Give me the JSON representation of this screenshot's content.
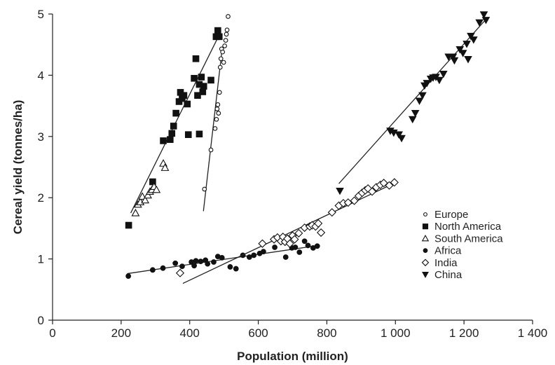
{
  "chart_data": {
    "type": "scatter",
    "xlabel": "Population (million)",
    "ylabel": "Cereal yield (tonnes/ha)",
    "xlim": [
      0,
      1400
    ],
    "ylim": [
      0,
      5
    ],
    "xticks": [
      0,
      200,
      400,
      600,
      800,
      1000,
      1200,
      1400
    ],
    "xtick_labels": [
      "0",
      "200",
      "400",
      "600",
      "800",
      "1 000",
      "1 200",
      "1 400"
    ],
    "yticks": [
      0,
      1,
      2,
      3,
      4,
      5
    ],
    "ytick_labels": [
      "0",
      "1",
      "2",
      "3",
      "4",
      "5"
    ],
    "grid": false,
    "legend_position": "right",
    "series": [
      {
        "name": "Europe",
        "marker": "open-circle",
        "points": [
          [
            443,
            2.14
          ],
          [
            462,
            2.78
          ],
          [
            474,
            3.13
          ],
          [
            478,
            3.28
          ],
          [
            480,
            3.45
          ],
          [
            482,
            3.52
          ],
          [
            484,
            3.38
          ],
          [
            487,
            3.72
          ],
          [
            489,
            4.13
          ],
          [
            491,
            4.27
          ],
          [
            493,
            4.43
          ],
          [
            496,
            4.38
          ],
          [
            499,
            4.21
          ],
          [
            502,
            4.48
          ],
          [
            505,
            4.57
          ],
          [
            507,
            4.67
          ],
          [
            509,
            4.74
          ],
          [
            512,
            4.96
          ]
        ],
        "trendline": [
          [
            440,
            1.78
          ],
          [
            495,
            4.45
          ]
        ]
      },
      {
        "name": "North America",
        "marker": "filled-square",
        "points": [
          [
            222,
            1.55
          ],
          [
            292,
            2.26
          ],
          [
            323,
            2.93
          ],
          [
            343,
            2.95
          ],
          [
            348,
            3.05
          ],
          [
            353,
            3.17
          ],
          [
            360,
            3.38
          ],
          [
            369,
            3.57
          ],
          [
            373,
            3.72
          ],
          [
            378,
            3.62
          ],
          [
            383,
            3.67
          ],
          [
            393,
            3.53
          ],
          [
            396,
            3.03
          ],
          [
            413,
            3.95
          ],
          [
            418,
            4.27
          ],
          [
            423,
            3.67
          ],
          [
            428,
            3.85
          ],
          [
            428,
            3.04
          ],
          [
            434,
            3.97
          ],
          [
            438,
            3.73
          ],
          [
            441,
            3.82
          ],
          [
            462,
            3.92
          ],
          [
            477,
            4.63
          ],
          [
            482,
            4.73
          ],
          [
            486,
            4.63
          ]
        ],
        "trendline": [
          [
            228,
            1.75
          ],
          [
            488,
            4.68
          ]
        ]
      },
      {
        "name": "South America",
        "marker": "open-triangle",
        "points": [
          [
            242,
            1.75
          ],
          [
            249,
            1.89
          ],
          [
            256,
            1.93
          ],
          [
            262,
            2.02
          ],
          [
            270,
            1.96
          ],
          [
            278,
            2.04
          ],
          [
            284,
            2.1
          ],
          [
            290,
            2.13
          ],
          [
            296,
            2.18
          ],
          [
            303,
            2.13
          ],
          [
            323,
            2.56
          ],
          [
            328,
            2.49
          ]
        ],
        "trendline": null
      },
      {
        "name": "Africa",
        "marker": "filled-circle",
        "points": [
          [
            221,
            0.72
          ],
          [
            292,
            0.82
          ],
          [
            322,
            0.85
          ],
          [
            358,
            0.93
          ],
          [
            378,
            0.88
          ],
          [
            405,
            0.95
          ],
          [
            413,
            0.89
          ],
          [
            418,
            0.97
          ],
          [
            432,
            0.96
          ],
          [
            446,
            0.98
          ],
          [
            452,
            0.92
          ],
          [
            470,
            0.95
          ],
          [
            482,
            1.04
          ],
          [
            494,
            1.02
          ],
          [
            518,
            0.87
          ],
          [
            535,
            0.84
          ],
          [
            555,
            1.06
          ],
          [
            574,
            1.03
          ],
          [
            587,
            1.06
          ],
          [
            604,
            1.09
          ],
          [
            615,
            1.12
          ],
          [
            648,
            1.19
          ],
          [
            680,
            1.03
          ],
          [
            698,
            1.18
          ],
          [
            708,
            1.19
          ],
          [
            720,
            1.11
          ],
          [
            735,
            1.29
          ],
          [
            745,
            1.22
          ],
          [
            760,
            1.18
          ],
          [
            772,
            1.21
          ]
        ],
        "trendline": [
          [
            218,
            0.76
          ],
          [
            775,
            1.22
          ]
        ]
      },
      {
        "name": "India",
        "marker": "open-diamond",
        "points": [
          [
            372,
            0.77
          ],
          [
            612,
            1.25
          ],
          [
            646,
            1.32
          ],
          [
            656,
            1.35
          ],
          [
            666,
            1.29
          ],
          [
            672,
            1.36
          ],
          [
            678,
            1.28
          ],
          [
            685,
            1.33
          ],
          [
            692,
            1.25
          ],
          [
            700,
            1.38
          ],
          [
            706,
            1.32
          ],
          [
            718,
            1.42
          ],
          [
            735,
            1.51
          ],
          [
            750,
            1.53
          ],
          [
            757,
            1.55
          ],
          [
            767,
            1.53
          ],
          [
            775,
            1.58
          ],
          [
            783,
            1.43
          ],
          [
            815,
            1.76
          ],
          [
            835,
            1.87
          ],
          [
            848,
            1.91
          ],
          [
            862,
            1.92
          ],
          [
            880,
            1.95
          ],
          [
            893,
            2.03
          ],
          [
            903,
            2.08
          ],
          [
            912,
            2.12
          ],
          [
            920,
            2.15
          ],
          [
            932,
            2.1
          ],
          [
            944,
            2.17
          ],
          [
            956,
            2.21
          ],
          [
            966,
            2.24
          ],
          [
            982,
            2.2
          ],
          [
            997,
            2.25
          ]
        ],
        "trendline": [
          [
            380,
            0.6
          ],
          [
            1005,
            2.26
          ]
        ]
      },
      {
        "name": "China",
        "marker": "filled-triangle-down",
        "points": [
          [
            838,
            2.11
          ],
          [
            985,
            3.09
          ],
          [
            995,
            3.06
          ],
          [
            1010,
            3.03
          ],
          [
            1018,
            2.97
          ],
          [
            1050,
            3.28
          ],
          [
            1058,
            3.38
          ],
          [
            1070,
            3.58
          ],
          [
            1079,
            3.67
          ],
          [
            1085,
            3.83
          ],
          [
            1092,
            3.87
          ],
          [
            1103,
            3.94
          ],
          [
            1110,
            3.96
          ],
          [
            1118,
            3.97
          ],
          [
            1128,
            3.92
          ],
          [
            1140,
            4.02
          ],
          [
            1155,
            4.3
          ],
          [
            1168,
            4.3
          ],
          [
            1172,
            4.24
          ],
          [
            1188,
            4.42
          ],
          [
            1197,
            4.36
          ],
          [
            1208,
            4.51
          ],
          [
            1212,
            4.26
          ],
          [
            1220,
            4.64
          ],
          [
            1228,
            4.58
          ],
          [
            1245,
            4.86
          ],
          [
            1258,
            4.99
          ],
          [
            1264,
            4.9
          ]
        ],
        "trendline": [
          [
            835,
            2.23
          ],
          [
            1270,
            4.95
          ]
        ]
      }
    ]
  }
}
